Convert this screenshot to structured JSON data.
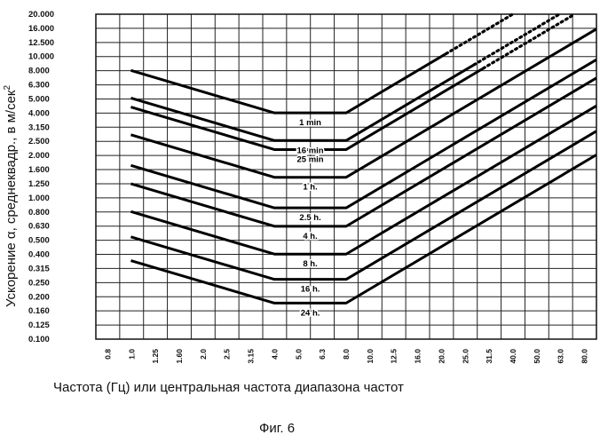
{
  "chart_data": {
    "type": "line",
    "xlabel": "Частота (Гц) или центральная частота диапазона частот",
    "ylabel": "Ускорение α, среднеквадр., в м/сек",
    "ylabel_sup": "2",
    "caption": "Фиг. 6",
    "grid": true,
    "x_scale": "log",
    "y_scale": "log",
    "x_ticks": [
      "0.8",
      "1.0",
      "1.25",
      "1.60",
      "2.0",
      "2.5",
      "3.15",
      "4.0",
      "5.0",
      "6.3",
      "8.0",
      "10.0",
      "12.5",
      "16.0",
      "20.0",
      "25.0",
      "31.5",
      "40.0",
      "50.0",
      "63.0",
      "80.0"
    ],
    "y_ticks": [
      "0.100",
      "0.125",
      "0.160",
      "0.200",
      "0.250",
      "0.315",
      "0.400",
      "0.500",
      "0.630",
      "0.800",
      "1.000",
      "1.250",
      "1.600",
      "2.000",
      "2.500",
      "3.150",
      "4.000",
      "5.000",
      "6.300",
      "8.000",
      "10.000",
      "12.500",
      "16.000",
      "20.000"
    ],
    "series": [
      {
        "name": "1 min",
        "x": [
          1.0,
          4.0,
          8.0,
          80.0
        ],
        "y": [
          8.0,
          4.0,
          4.0,
          40.0
        ],
        "dashed_tail": true
      },
      {
        "name": "16 min",
        "x": [
          1.0,
          4.0,
          8.0,
          80.0
        ],
        "y": [
          5.1,
          2.55,
          2.55,
          25.5
        ],
        "dashed_tail": true
      },
      {
        "name": "25 min",
        "x": [
          1.0,
          4.0,
          8.0,
          80.0
        ],
        "y": [
          4.4,
          2.2,
          2.2,
          22.0
        ],
        "dashed_tail": true
      },
      {
        "name": "1 h.",
        "x": [
          1.0,
          4.0,
          8.0,
          80.0
        ],
        "y": [
          2.8,
          1.4,
          1.4,
          14.0
        ]
      },
      {
        "name": "2.5 h.",
        "x": [
          1.0,
          4.0,
          8.0,
          80.0
        ],
        "y": [
          1.7,
          0.85,
          0.85,
          8.5
        ]
      },
      {
        "name": "4 h.",
        "x": [
          1.0,
          4.0,
          8.0,
          80.0
        ],
        "y": [
          1.26,
          0.63,
          0.63,
          6.3
        ]
      },
      {
        "name": "8 h.",
        "x": [
          1.0,
          4.0,
          8.0,
          80.0
        ],
        "y": [
          0.8,
          0.4,
          0.4,
          4.0
        ]
      },
      {
        "name": "16 h.",
        "x": [
          1.0,
          4.0,
          8.0,
          80.0
        ],
        "y": [
          0.53,
          0.265,
          0.265,
          2.65
        ]
      },
      {
        "name": "24 h.",
        "x": [
          1.0,
          4.0,
          8.0,
          80.0
        ],
        "y": [
          0.36,
          0.18,
          0.18,
          1.8
        ]
      }
    ]
  }
}
